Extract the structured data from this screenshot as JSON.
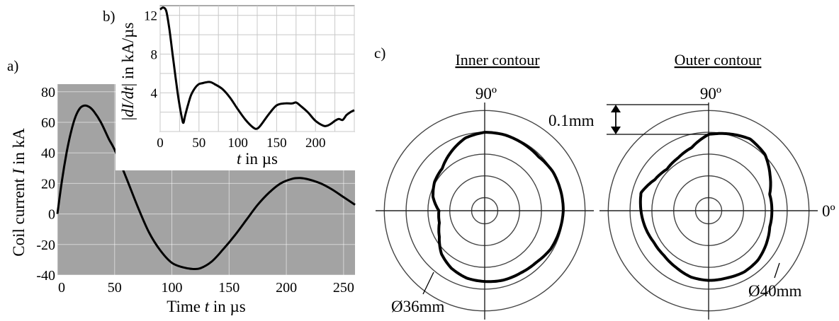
{
  "chart_data": [
    {
      "panel": "a)",
      "type": "line",
      "xlabel_pre": "Time ",
      "xlabel_var": "t",
      "xlabel_post": " in µs",
      "ylabel_pre": "Coil current ",
      "ylabel_var": "I",
      "ylabel_post": " in kA",
      "xlim": [
        0,
        260
      ],
      "ylim": [
        -40,
        85
      ],
      "xticks": [
        0,
        50,
        100,
        150,
        200,
        250
      ],
      "yticks": [
        -40,
        -20,
        0,
        20,
        40,
        60,
        80
      ],
      "grid": true,
      "x": [
        0,
        4,
        8,
        12,
        16,
        20,
        24,
        28,
        32,
        38,
        45,
        50,
        60,
        70,
        80,
        90,
        100,
        110,
        118,
        125,
        135,
        145,
        155,
        165,
        175,
        185,
        195,
        205,
        212,
        220,
        230,
        240,
        250,
        260
      ],
      "y": [
        0,
        22,
        40,
        54,
        64,
        69.5,
        71,
        70,
        67,
        60,
        49,
        42,
        24,
        5,
        -12,
        -24,
        -32,
        -35,
        -36,
        -35.5,
        -31,
        -23,
        -14,
        -4,
        6,
        14,
        20,
        23,
        23.5,
        22.5,
        20,
        16,
        11,
        6
      ]
    },
    {
      "panel": "b)",
      "type": "line",
      "xlabel_var": "t",
      "xlabel_post": " in µs",
      "ylabel_pre": "|",
      "ylabel_var": "dI/dt",
      "ylabel_post": "| in kA/µs",
      "xlim": [
        0,
        250
      ],
      "ylim": [
        0,
        13
      ],
      "xticks": [
        0,
        50,
        100,
        150,
        200
      ],
      "yticks": [
        4,
        8,
        12
      ],
      "grid": true,
      "x": [
        0,
        4,
        8,
        12,
        16,
        20,
        24,
        28,
        30,
        32,
        36,
        40,
        45,
        50,
        55,
        60,
        65,
        70,
        80,
        90,
        100,
        110,
        120,
        125,
        130,
        140,
        150,
        160,
        170,
        175,
        180,
        190,
        200,
        210,
        215,
        220,
        225,
        230,
        235,
        240,
        245,
        250
      ],
      "y": [
        12.6,
        12.8,
        12.4,
        10.5,
        8,
        5.5,
        3.2,
        1.4,
        0.9,
        1.6,
        2.8,
        3.8,
        4.5,
        4.9,
        5,
        5.1,
        5.1,
        4.9,
        4.4,
        3.5,
        2.3,
        1.2,
        0.4,
        0.3,
        0.7,
        1.8,
        2.7,
        2.9,
        2.9,
        3,
        2.7,
        2,
        1.1,
        0.6,
        0.6,
        0.8,
        1.1,
        1.3,
        1.2,
        1.7,
        2,
        2.2
      ]
    },
    {
      "panel": "c)",
      "type": "polar",
      "plots": [
        {
          "title": "Inner contour",
          "angle_label_90": "90º",
          "diameter_label": "Ø36mm",
          "rings": [
            0.12,
            0.32,
            0.52,
            0.72,
            0.92
          ],
          "theta_deg": [
            0,
            15,
            30,
            45,
            60,
            75,
            90,
            105,
            120,
            135,
            150,
            165,
            180,
            195,
            210,
            225,
            240,
            255,
            270,
            285,
            300,
            315,
            330,
            345,
            360
          ],
          "r": [
            0.72,
            0.72,
            0.72,
            0.7,
            0.71,
            0.72,
            0.72,
            0.69,
            0.62,
            0.55,
            0.53,
            0.49,
            0.42,
            0.43,
            0.48,
            0.56,
            0.61,
            0.64,
            0.65,
            0.66,
            0.66,
            0.67,
            0.7,
            0.71,
            0.72
          ]
        },
        {
          "title": "Outer contour",
          "angle_label_90": "90º",
          "angle_label_0": "0º",
          "scale_label": "0.1mm",
          "diameter_label": "Ø40mm",
          "rings": [
            0.12,
            0.32,
            0.52,
            0.72,
            0.92
          ],
          "theta_deg": [
            0,
            15,
            30,
            45,
            60,
            75,
            90,
            105,
            120,
            135,
            150,
            165,
            180,
            195,
            210,
            225,
            240,
            255,
            270,
            285,
            300,
            315,
            330,
            345,
            360
          ],
          "r": [
            0.58,
            0.58,
            0.65,
            0.73,
            0.76,
            0.73,
            0.7,
            0.6,
            0.56,
            0.54,
            0.57,
            0.64,
            0.62,
            0.6,
            0.58,
            0.58,
            0.6,
            0.63,
            0.64,
            0.64,
            0.65,
            0.64,
            0.61,
            0.58,
            0.58
          ]
        }
      ]
    }
  ]
}
